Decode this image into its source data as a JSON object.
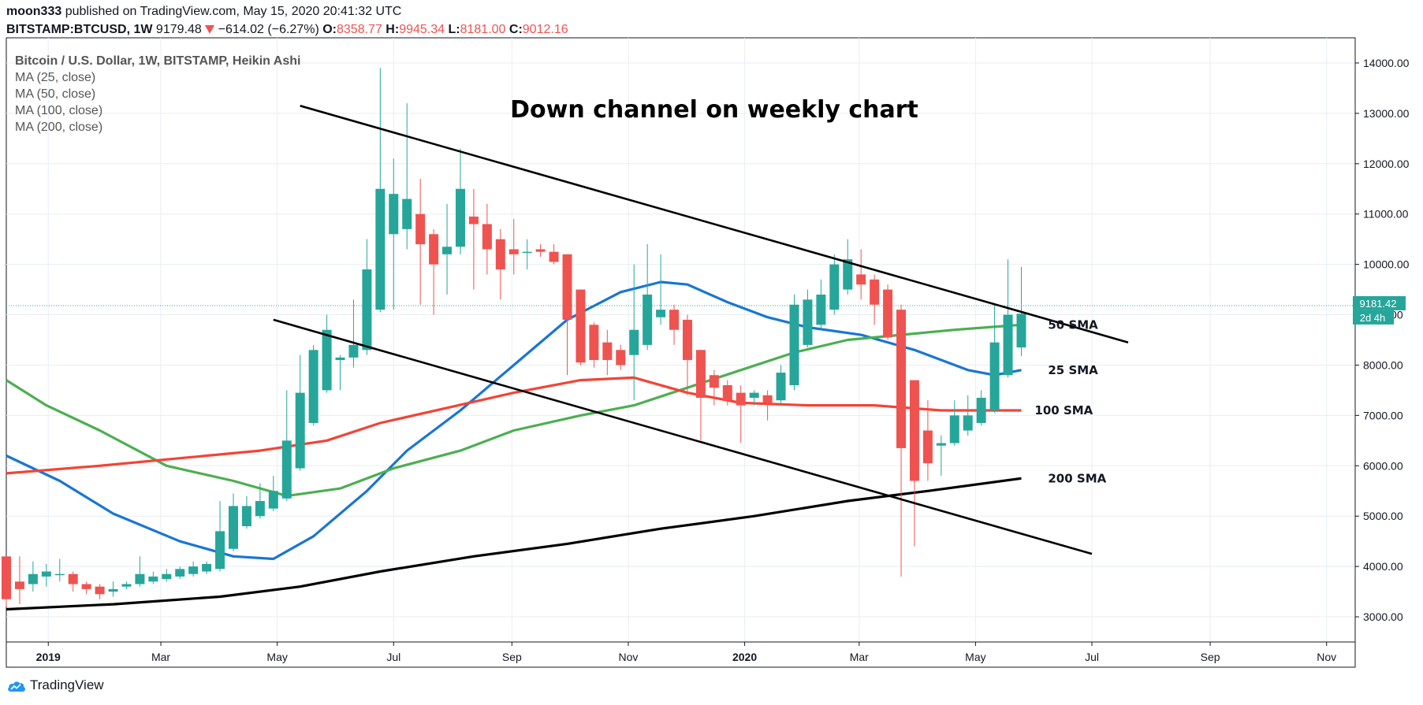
{
  "header": {
    "author": "moon333",
    "published": "published on TradingView.com, May 15, 2020 20:41:32 UTC",
    "symbol": "BITSTAMP:BTCUSD, 1W",
    "last": "9179.48",
    "change": "−614.02 (−6.27%)",
    "o_label": "O:",
    "o_value": "8358.77",
    "h_label": "H:",
    "h_value": "9945.34",
    "l_label": "L:",
    "l_value": "8181.00",
    "c_label": "C:",
    "c_value": "9012.16"
  },
  "legend": {
    "instrument": "Bitcoin / U.S. Dollar, 1W, BITSTAMP, Heikin Ashi",
    "ma1": "MA (25, close)",
    "ma2": "MA (50, close)",
    "ma3": "MA (100, close)",
    "ma4": "MA (200, close)"
  },
  "branding": {
    "logo_text": "TradingView"
  },
  "colors": {
    "up": "#26a69a",
    "down": "#ef5350",
    "ma25": "#1976d2",
    "ma50": "#4caf50",
    "ma100": "#f44336",
    "ma200": "#000000",
    "price_line": "#26a69a"
  },
  "chart_data": {
    "type": "candlestick",
    "title": "Down channel on weekly chart",
    "ylim": [
      2500,
      14500
    ],
    "xlim": [
      "2018-12-10",
      "2020-11-16"
    ],
    "y_ticks": [
      "3000.00",
      "4000.00",
      "5000.00",
      "6000.00",
      "7000.00",
      "8000.00",
      "9000.00",
      "10000.00",
      "11000.00",
      "12000.00",
      "13000.00",
      "14000.00"
    ],
    "x_ticks": [
      {
        "label": "2019",
        "date": "2019-01-01"
      },
      {
        "label": "Mar",
        "date": "2019-03-01"
      },
      {
        "label": "May",
        "date": "2019-05-01"
      },
      {
        "label": "Jul",
        "date": "2019-07-01"
      },
      {
        "label": "Sep",
        "date": "2019-09-01"
      },
      {
        "label": "Nov",
        "date": "2019-11-01"
      },
      {
        "label": "2020",
        "date": "2020-01-01"
      },
      {
        "label": "Mar",
        "date": "2020-03-01"
      },
      {
        "label": "May",
        "date": "2020-05-01"
      },
      {
        "label": "Jul",
        "date": "2020-07-01"
      },
      {
        "label": "Sep",
        "date": "2020-09-01"
      },
      {
        "label": "Nov",
        "date": "2020-11-01"
      }
    ],
    "current_price": {
      "value": "9181.42",
      "countdown": "2d 4h"
    },
    "candles": [
      {
        "d": "2018-12-10",
        "o": 4200,
        "h": 4200,
        "l": 3200,
        "c": 3350
      },
      {
        "d": "2018-12-17",
        "o": 3700,
        "h": 4200,
        "l": 3250,
        "c": 3550
      },
      {
        "d": "2018-12-24",
        "o": 3650,
        "h": 4100,
        "l": 3500,
        "c": 3850
      },
      {
        "d": "2018-12-31",
        "o": 3800,
        "h": 4050,
        "l": 3600,
        "c": 3900
      },
      {
        "d": "2019-01-07",
        "o": 3850,
        "h": 4150,
        "l": 3700,
        "c": 3850
      },
      {
        "d": "2019-01-14",
        "o": 3850,
        "h": 3900,
        "l": 3500,
        "c": 3650
      },
      {
        "d": "2019-01-21",
        "o": 3650,
        "h": 3700,
        "l": 3450,
        "c": 3550
      },
      {
        "d": "2019-01-28",
        "o": 3600,
        "h": 3650,
        "l": 3350,
        "c": 3450
      },
      {
        "d": "2019-02-04",
        "o": 3500,
        "h": 3700,
        "l": 3400,
        "c": 3550
      },
      {
        "d": "2019-02-11",
        "o": 3600,
        "h": 3700,
        "l": 3550,
        "c": 3650
      },
      {
        "d": "2019-02-18",
        "o": 3650,
        "h": 4200,
        "l": 3600,
        "c": 3850
      },
      {
        "d": "2019-02-25",
        "o": 3700,
        "h": 3900,
        "l": 3650,
        "c": 3800
      },
      {
        "d": "2019-03-04",
        "o": 3750,
        "h": 3950,
        "l": 3700,
        "c": 3850
      },
      {
        "d": "2019-03-11",
        "o": 3800,
        "h": 4000,
        "l": 3750,
        "c": 3950
      },
      {
        "d": "2019-03-18",
        "o": 3850,
        "h": 4100,
        "l": 3800,
        "c": 4000
      },
      {
        "d": "2019-03-25",
        "o": 3900,
        "h": 4100,
        "l": 3850,
        "c": 4050
      },
      {
        "d": "2019-04-01",
        "o": 3950,
        "h": 5300,
        "l": 3900,
        "c": 4700
      },
      {
        "d": "2019-04-08",
        "o": 4350,
        "h": 5450,
        "l": 4300,
        "c": 5200
      },
      {
        "d": "2019-04-15",
        "o": 4800,
        "h": 5400,
        "l": 4750,
        "c": 5200
      },
      {
        "d": "2019-04-22",
        "o": 5000,
        "h": 5650,
        "l": 4950,
        "c": 5300
      },
      {
        "d": "2019-04-29",
        "o": 5150,
        "h": 5800,
        "l": 5100,
        "c": 5500
      },
      {
        "d": "2019-05-06",
        "o": 5350,
        "h": 7500,
        "l": 5300,
        "c": 6500
      },
      {
        "d": "2019-05-13",
        "o": 5950,
        "h": 8200,
        "l": 5900,
        "c": 7450
      },
      {
        "d": "2019-05-20",
        "o": 6850,
        "h": 8400,
        "l": 6800,
        "c": 8300
      },
      {
        "d": "2019-05-27",
        "o": 7500,
        "h": 9000,
        "l": 7450,
        "c": 8700
      },
      {
        "d": "2019-06-03",
        "o": 8100,
        "h": 8200,
        "l": 7500,
        "c": 8150
      },
      {
        "d": "2019-06-10",
        "o": 8150,
        "h": 9300,
        "l": 7950,
        "c": 8400
      },
      {
        "d": "2019-06-17",
        "o": 8300,
        "h": 10500,
        "l": 8200,
        "c": 9900
      },
      {
        "d": "2019-06-24",
        "o": 9100,
        "h": 13900,
        "l": 9050,
        "c": 11500
      },
      {
        "d": "2019-07-01",
        "o": 10600,
        "h": 12100,
        "l": 9100,
        "c": 11400
      },
      {
        "d": "2019-07-08",
        "o": 10700,
        "h": 13200,
        "l": 10300,
        "c": 11300
      },
      {
        "d": "2019-07-15",
        "o": 11000,
        "h": 11700,
        "l": 9200,
        "c": 10400
      },
      {
        "d": "2019-07-22",
        "o": 10600,
        "h": 10700,
        "l": 9000,
        "c": 10000
      },
      {
        "d": "2019-07-29",
        "o": 10200,
        "h": 11200,
        "l": 9400,
        "c": 10350
      },
      {
        "d": "2019-08-05",
        "o": 10350,
        "h": 12300,
        "l": 10200,
        "c": 11500
      },
      {
        "d": "2019-08-12",
        "o": 10950,
        "h": 11500,
        "l": 9500,
        "c": 10800
      },
      {
        "d": "2019-08-19",
        "o": 10800,
        "h": 11200,
        "l": 9800,
        "c": 10300
      },
      {
        "d": "2019-08-26",
        "o": 10500,
        "h": 10700,
        "l": 9300,
        "c": 9900
      },
      {
        "d": "2019-09-02",
        "o": 10300,
        "h": 10900,
        "l": 9800,
        "c": 10200
      },
      {
        "d": "2019-09-09",
        "o": 10250,
        "h": 10500,
        "l": 9900,
        "c": 10250
      },
      {
        "d": "2019-09-16",
        "o": 10300,
        "h": 10400,
        "l": 10150,
        "c": 10250
      },
      {
        "d": "2019-09-23",
        "o": 10250,
        "h": 10400,
        "l": 10000,
        "c": 10050
      },
      {
        "d": "2019-09-30",
        "o": 10200,
        "h": 10200,
        "l": 7800,
        "c": 8900
      },
      {
        "d": "2019-10-07",
        "o": 9500,
        "h": 9500,
        "l": 8000,
        "c": 8050
      },
      {
        "d": "2019-10-14",
        "o": 8800,
        "h": 8850,
        "l": 7950,
        "c": 8100
      },
      {
        "d": "2019-10-21",
        "o": 8450,
        "h": 8700,
        "l": 7800,
        "c": 8100
      },
      {
        "d": "2019-10-28",
        "o": 8300,
        "h": 8400,
        "l": 7900,
        "c": 8000
      },
      {
        "d": "2019-11-04",
        "o": 8200,
        "h": 10000,
        "l": 7300,
        "c": 8700
      },
      {
        "d": "2019-11-11",
        "o": 8400,
        "h": 10400,
        "l": 8300,
        "c": 9400
      },
      {
        "d": "2019-11-18",
        "o": 8950,
        "h": 10200,
        "l": 8800,
        "c": 9100
      },
      {
        "d": "2019-11-25",
        "o": 9100,
        "h": 9200,
        "l": 8400,
        "c": 8700
      },
      {
        "d": "2019-12-02",
        "o": 8900,
        "h": 9000,
        "l": 7400,
        "c": 8100
      },
      {
        "d": "2019-12-09",
        "o": 8300,
        "h": 8300,
        "l": 6500,
        "c": 7350
      },
      {
        "d": "2019-12-16",
        "o": 7800,
        "h": 7900,
        "l": 7200,
        "c": 7550
      },
      {
        "d": "2019-12-23",
        "o": 7600,
        "h": 7700,
        "l": 7200,
        "c": 7300
      },
      {
        "d": "2019-12-30",
        "o": 7450,
        "h": 7600,
        "l": 6450,
        "c": 7200
      },
      {
        "d": "2020-01-06",
        "o": 7350,
        "h": 7500,
        "l": 7200,
        "c": 7450
      },
      {
        "d": "2020-01-13",
        "o": 7400,
        "h": 7500,
        "l": 6900,
        "c": 7250
      },
      {
        "d": "2020-01-20",
        "o": 7300,
        "h": 8000,
        "l": 7250,
        "c": 7850
      },
      {
        "d": "2020-01-27",
        "o": 7600,
        "h": 9400,
        "l": 7500,
        "c": 9200
      },
      {
        "d": "2020-02-03",
        "o": 8400,
        "h": 9500,
        "l": 8350,
        "c": 9300
      },
      {
        "d": "2020-02-10",
        "o": 8800,
        "h": 9700,
        "l": 8700,
        "c": 9400
      },
      {
        "d": "2020-02-17",
        "o": 9100,
        "h": 10200,
        "l": 9000,
        "c": 10000
      },
      {
        "d": "2020-02-24",
        "o": 9500,
        "h": 10500,
        "l": 9400,
        "c": 10100
      },
      {
        "d": "2020-03-02",
        "o": 9800,
        "h": 10300,
        "l": 9300,
        "c": 9600
      },
      {
        "d": "2020-03-09",
        "o": 9700,
        "h": 9800,
        "l": 8800,
        "c": 9200
      },
      {
        "d": "2020-03-16",
        "o": 9500,
        "h": 9600,
        "l": 8500,
        "c": 8550
      },
      {
        "d": "2020-03-23",
        "o": 9100,
        "h": 9200,
        "l": 3800,
        "c": 6350
      },
      {
        "d": "2020-03-30",
        "o": 7700,
        "h": 7700,
        "l": 4400,
        "c": 5700
      },
      {
        "d": "2020-04-06",
        "o": 6700,
        "h": 7300,
        "l": 5700,
        "c": 6050
      },
      {
        "d": "2020-04-13",
        "o": 6400,
        "h": 6600,
        "l": 5800,
        "c": 6450
      },
      {
        "d": "2020-04-20",
        "o": 6450,
        "h": 7300,
        "l": 6400,
        "c": 7000
      },
      {
        "d": "2020-04-27",
        "o": 6700,
        "h": 7400,
        "l": 6600,
        "c": 7000
      },
      {
        "d": "2020-05-04",
        "o": 6850,
        "h": 7500,
        "l": 6800,
        "c": 7350
      },
      {
        "d": "2020-05-11",
        "o": 7100,
        "h": 9200,
        "l": 7050,
        "c": 8450
      },
      {
        "d": "2020-05-18",
        "o": 7800,
        "h": 10100,
        "l": 7750,
        "c": 9000
      },
      {
        "d": "2020-05-25",
        "o": 8350,
        "h": 9950,
        "l": 8180,
        "c": 9020
      }
    ],
    "ma_lines": [
      {
        "name": "MA (25, close)",
        "label": "25 SMA",
        "color": "#1976d2",
        "points": [
          [
            "2018-12-10",
            6200
          ],
          [
            "2019-01-07",
            5700
          ],
          [
            "2019-02-04",
            5050
          ],
          [
            "2019-03-11",
            4500
          ],
          [
            "2019-04-08",
            4200
          ],
          [
            "2019-04-29",
            4150
          ],
          [
            "2019-05-20",
            4600
          ],
          [
            "2019-06-17",
            5500
          ],
          [
            "2019-07-08",
            6300
          ],
          [
            "2019-08-05",
            7100
          ],
          [
            "2019-09-02",
            8000
          ],
          [
            "2019-09-30",
            8900
          ],
          [
            "2019-10-28",
            9450
          ],
          [
            "2019-11-18",
            9650
          ],
          [
            "2019-12-02",
            9600
          ],
          [
            "2019-12-23",
            9250
          ],
          [
            "2020-01-13",
            8950
          ],
          [
            "2020-02-03",
            8750
          ],
          [
            "2020-03-02",
            8600
          ],
          [
            "2020-03-30",
            8300
          ],
          [
            "2020-04-27",
            7900
          ],
          [
            "2020-05-11",
            7800
          ],
          [
            "2020-05-25",
            7900
          ]
        ]
      },
      {
        "name": "MA (50, close)",
        "label": "50 SMA",
        "color": "#4caf50",
        "points": [
          [
            "2018-12-10",
            7700
          ],
          [
            "2018-12-31",
            7200
          ],
          [
            "2019-01-28",
            6700
          ],
          [
            "2019-03-04",
            6000
          ],
          [
            "2019-04-08",
            5700
          ],
          [
            "2019-05-06",
            5400
          ],
          [
            "2019-06-03",
            5550
          ],
          [
            "2019-07-01",
            5950
          ],
          [
            "2019-08-05",
            6300
          ],
          [
            "2019-09-02",
            6700
          ],
          [
            "2019-10-07",
            7000
          ],
          [
            "2019-11-04",
            7200
          ],
          [
            "2019-12-02",
            7550
          ],
          [
            "2019-12-30",
            7900
          ],
          [
            "2020-01-27",
            8250
          ],
          [
            "2020-02-24",
            8500
          ],
          [
            "2020-03-23",
            8600
          ],
          [
            "2020-04-20",
            8700
          ],
          [
            "2020-05-25",
            8800
          ]
        ]
      },
      {
        "name": "MA (100, close)",
        "label": "100 SMA",
        "color": "#f44336",
        "points": [
          [
            "2018-12-10",
            5850
          ],
          [
            "2019-01-28",
            6000
          ],
          [
            "2019-03-11",
            6150
          ],
          [
            "2019-04-22",
            6300
          ],
          [
            "2019-05-27",
            6500
          ],
          [
            "2019-06-24",
            6850
          ],
          [
            "2019-07-29",
            7150
          ],
          [
            "2019-09-02",
            7450
          ],
          [
            "2019-10-07",
            7700
          ],
          [
            "2019-11-04",
            7750
          ],
          [
            "2019-12-02",
            7450
          ],
          [
            "2019-12-30",
            7250
          ],
          [
            "2020-02-03",
            7200
          ],
          [
            "2020-03-09",
            7200
          ],
          [
            "2020-04-13",
            7100
          ],
          [
            "2020-05-25",
            7100
          ]
        ]
      },
      {
        "name": "MA (200, close)",
        "label": "200 SMA",
        "color": "#000000",
        "points": [
          [
            "2018-12-10",
            3150
          ],
          [
            "2019-02-04",
            3250
          ],
          [
            "2019-04-01",
            3400
          ],
          [
            "2019-05-13",
            3600
          ],
          [
            "2019-06-24",
            3900
          ],
          [
            "2019-08-12",
            4200
          ],
          [
            "2019-09-30",
            4450
          ],
          [
            "2019-11-18",
            4750
          ],
          [
            "2020-01-06",
            5000
          ],
          [
            "2020-02-24",
            5300
          ],
          [
            "2020-04-06",
            5500
          ],
          [
            "2020-05-25",
            5750
          ]
        ]
      }
    ],
    "trendlines": [
      {
        "name": "channel-upper",
        "from": [
          "2019-05-13",
          13150
        ],
        "to": [
          "2020-07-20",
          8450
        ]
      },
      {
        "name": "channel-lower",
        "from": [
          "2019-04-29",
          8900
        ],
        "to": [
          "2020-07-01",
          4250
        ]
      }
    ],
    "annotations": [
      {
        "text": "50 SMA",
        "d": "2020-06-08",
        "v": 8800
      },
      {
        "text": "25 SMA",
        "d": "2020-06-08",
        "v": 7900
      },
      {
        "text": "100 SMA",
        "d": "2020-06-01",
        "v": 7100
      },
      {
        "text": "200 SMA",
        "d": "2020-06-08",
        "v": 5750
      }
    ]
  }
}
